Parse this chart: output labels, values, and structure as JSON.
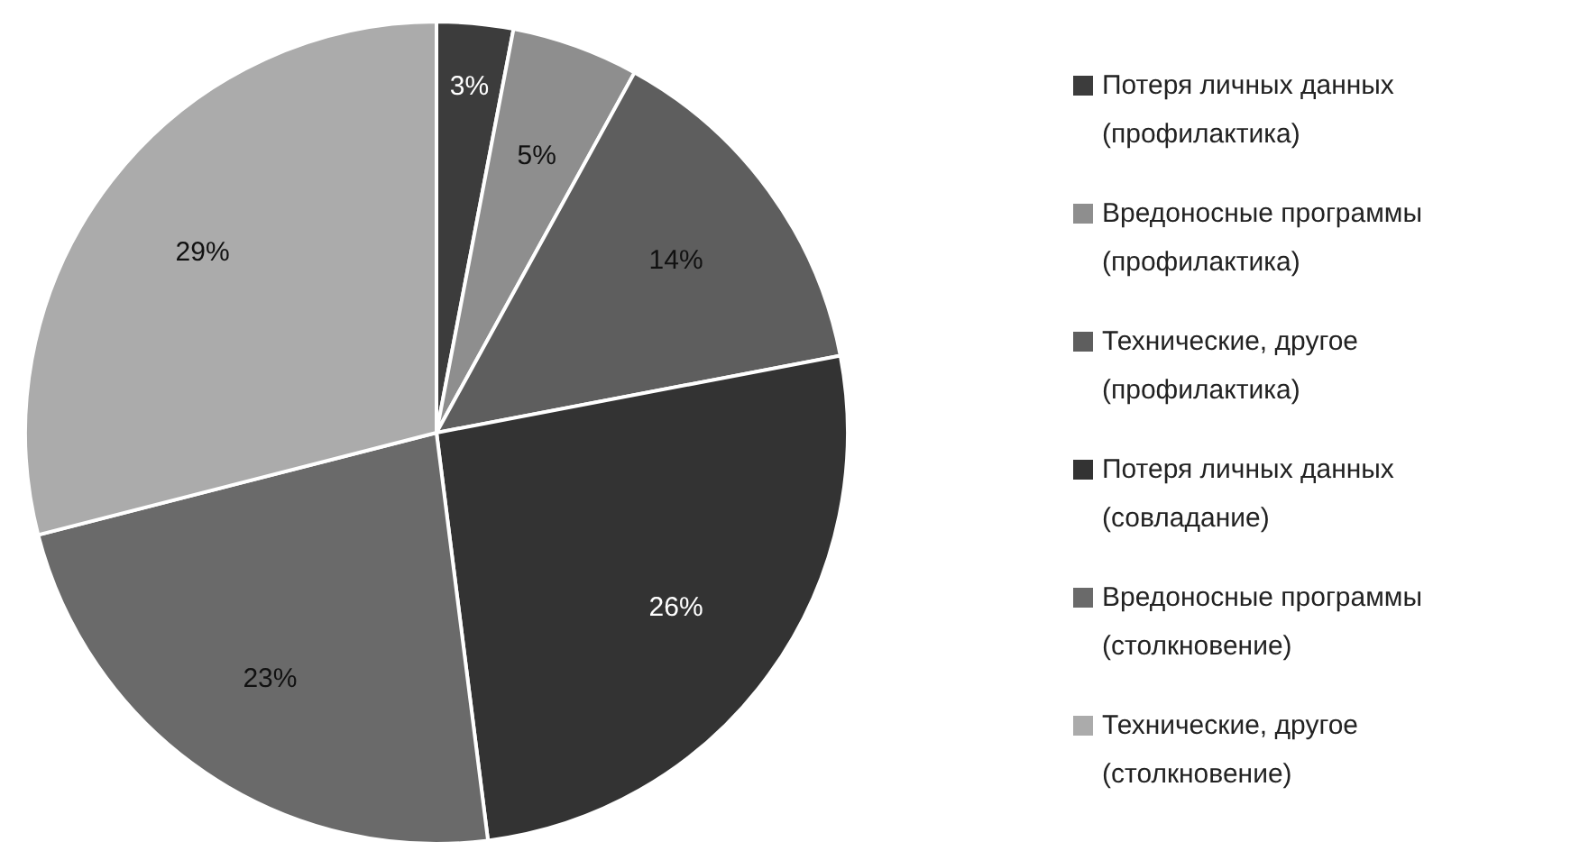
{
  "chart_data": {
    "type": "pie",
    "categories": [
      "Потеря личных данных (профилактика)",
      "Вредоносные программы (профилактика)",
      "Технические, другое (профилактика)",
      "Потеря личных данных (совладание)",
      "Вредоносные программы (столкновение)",
      "Технические, другое (столкновение)"
    ],
    "values": [
      3,
      5,
      14,
      26,
      23,
      29
    ],
    "value_labels": [
      "3%",
      "5%",
      "14%",
      "26%",
      "23%",
      "29%"
    ],
    "colors": [
      "#3c3c3c",
      "#8e8e8e",
      "#5e5e5e",
      "#333333",
      "#6a6a6a",
      "#ababab"
    ],
    "legend": "right"
  }
}
